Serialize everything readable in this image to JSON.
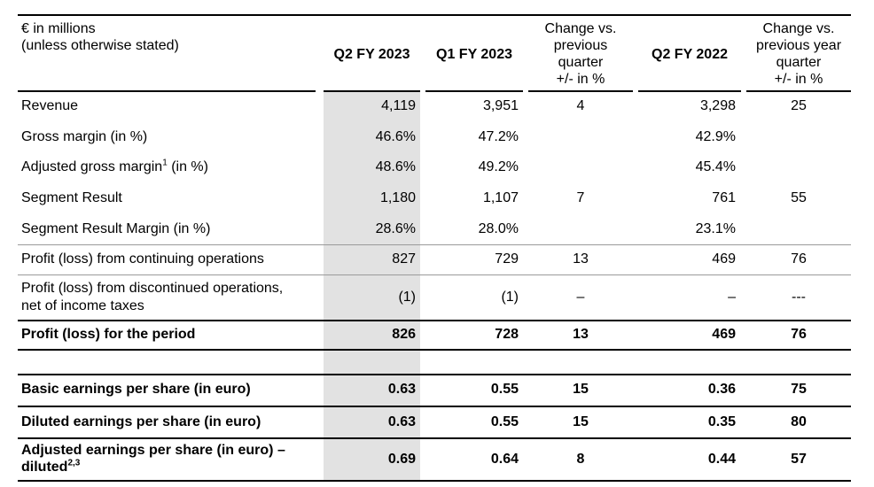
{
  "header": {
    "unit_line1": "€ in millions",
    "unit_line2": "(unless otherwise stated)",
    "col1": "Q2 FY 2023",
    "col2": "Q1 FY 2023",
    "col3": [
      "Change vs.",
      "previous",
      "quarter",
      "+/- in %"
    ],
    "col4": "Q2 FY 2022",
    "col5": [
      "Change vs.",
      "previous year",
      "quarter",
      "+/- in %"
    ]
  },
  "rows": [
    {
      "label": "Revenue",
      "v1": "4,119",
      "v2": "3,951",
      "v3": "4",
      "v4": "3,298",
      "v5": "25"
    },
    {
      "label": "Gross margin (in %)",
      "v1": "46.6%",
      "v2": "47.2%",
      "v3": "",
      "v4": "42.9%",
      "v5": ""
    },
    {
      "label": "Adjusted gross margin",
      "sup": "1",
      "label_suffix": " (in %)",
      "v1": "48.6%",
      "v2": "49.2%",
      "v3": "",
      "v4": "45.4%",
      "v5": ""
    },
    {
      "label": "Segment Result",
      "v1": "1,180",
      "v2": "1,107",
      "v3": "7",
      "v4": "761",
      "v5": "55"
    },
    {
      "label": "Segment Result Margin (in %)",
      "v1": "28.6%",
      "v2": "28.0%",
      "v3": "",
      "v4": "23.1%",
      "v5": ""
    },
    {
      "label": "Profit (loss) from continuing operations",
      "v1": "827",
      "v2": "729",
      "v3": "13",
      "v4": "469",
      "v5": "76"
    },
    {
      "label": [
        "Profit (loss) from discontinued operations,",
        "net of income taxes"
      ],
      "v1": "(1)",
      "v2": "(1)",
      "v3": "–",
      "v4": "–",
      "v5": "---"
    },
    {
      "label": "Profit (loss) for the period",
      "v1": "826",
      "v2": "728",
      "v3": "13",
      "v4": "469",
      "v5": "76"
    },
    {
      "label": "Basic earnings per share (in euro)",
      "v1": "0.63",
      "v2": "0.55",
      "v3": "15",
      "v4": "0.36",
      "v5": "75"
    },
    {
      "label": "Diluted earnings per share (in euro)",
      "v1": "0.63",
      "v2": "0.55",
      "v3": "15",
      "v4": "0.35",
      "v5": "80"
    },
    {
      "label": [
        "Adjusted earnings per share (in euro) –",
        "diluted"
      ],
      "sup": "2,3",
      "v1": "0.69",
      "v2": "0.64",
      "v3": "8",
      "v4": "0.44",
      "v5": "57"
    }
  ]
}
